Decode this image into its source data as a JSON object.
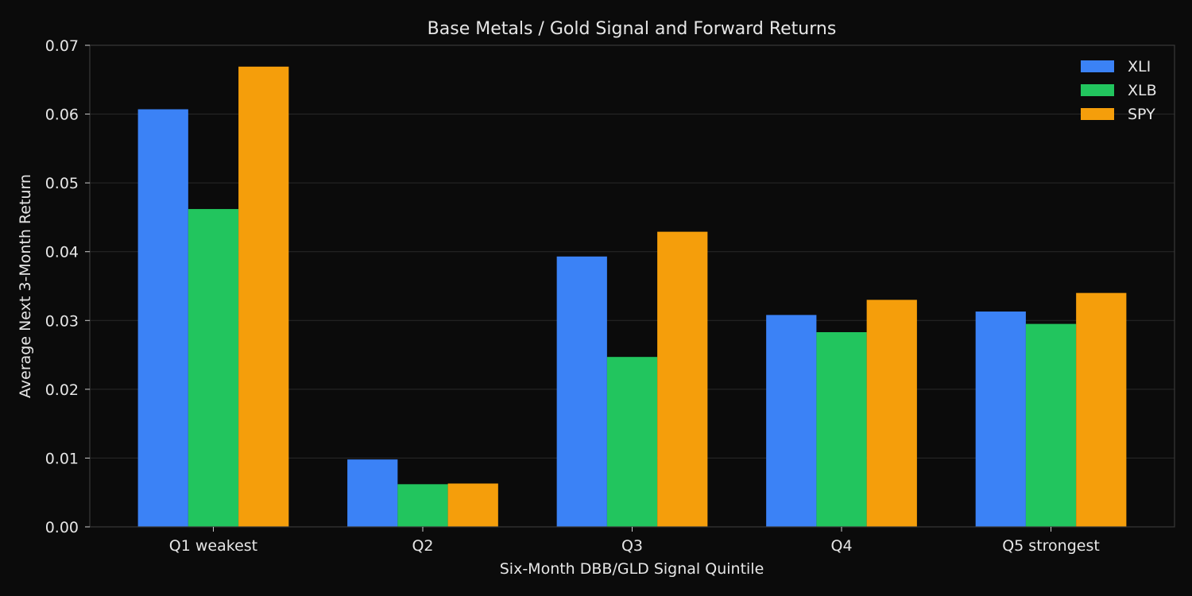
{
  "chart_data": {
    "type": "bar",
    "title": "Base Metals / Gold Signal and Forward Returns",
    "xlabel": "Six-Month DBB/GLD Signal Quintile",
    "ylabel": "Average Next 3-Month Return",
    "categories": [
      "Q1 weakest",
      "Q2",
      "Q3",
      "Q4",
      "Q5 strongest"
    ],
    "ylim": [
      0,
      0.07
    ],
    "yticks": [
      "0.00",
      "0.01",
      "0.02",
      "0.03",
      "0.04",
      "0.05",
      "0.06",
      "0.07"
    ],
    "grid": true,
    "legend_position": "top-right",
    "series": [
      {
        "name": "XLI",
        "color": "#3b82f6",
        "values": [
          0.0607,
          0.0098,
          0.0393,
          0.0308,
          0.0313
        ]
      },
      {
        "name": "XLB",
        "color": "#22c55e",
        "values": [
          0.0462,
          0.0062,
          0.0247,
          0.0283,
          0.0295
        ]
      },
      {
        "name": "SPY",
        "color": "#f59e0b",
        "values": [
          0.0669,
          0.0063,
          0.0429,
          0.033,
          0.034
        ]
      }
    ]
  }
}
